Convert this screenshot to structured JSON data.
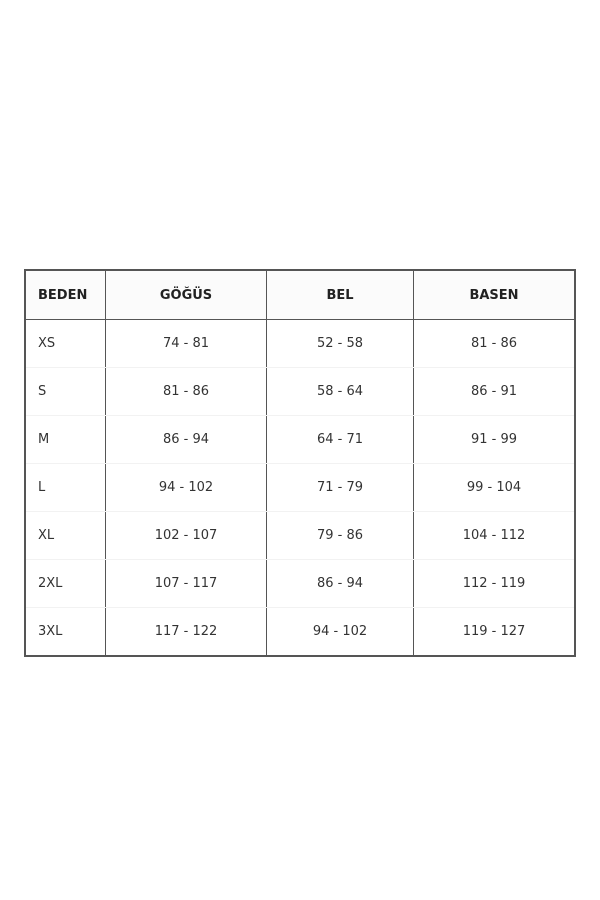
{
  "table": {
    "headers": [
      "BEDEN",
      "GÖĞÜS",
      "BEL",
      "BASEN"
    ],
    "rows": [
      [
        "XS",
        "74 - 81",
        "52 - 58",
        "81 - 86"
      ],
      [
        "S",
        "81 - 86",
        "58 - 64",
        "86 - 91"
      ],
      [
        "M",
        "86 - 94",
        "64 - 71",
        "91 - 99"
      ],
      [
        "L",
        "94 - 102",
        "71 - 79",
        "99 - 104"
      ],
      [
        "XL",
        "102 - 107",
        "79 - 86",
        "104 - 112"
      ],
      [
        "2XL",
        "107 - 117",
        "86 - 94",
        "112 - 119"
      ],
      [
        "3XL",
        "117 - 122",
        "94 - 102",
        "119 - 127"
      ]
    ]
  }
}
